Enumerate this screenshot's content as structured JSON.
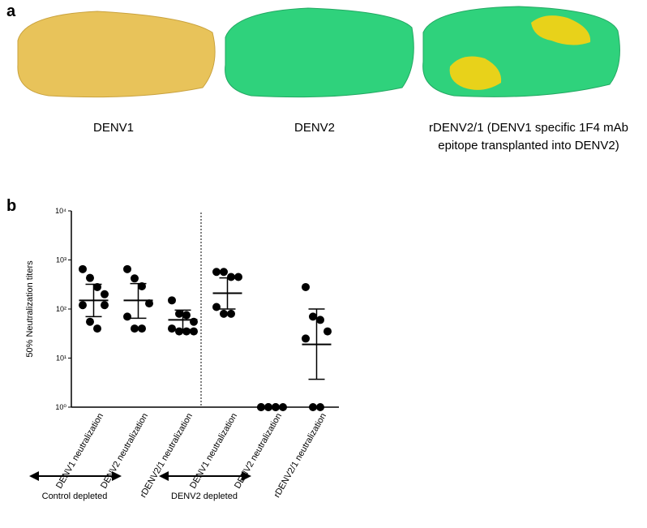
{
  "panel_a": {
    "label": "a",
    "captions": [
      "DENV1",
      "DENV2",
      "rDENV2/1 (DENV1 specific 1F4 mAb",
      "epitope transplanted into DENV2)"
    ]
  },
  "panel_b": {
    "label": "b",
    "groups": [
      "Control depleted",
      "DENV2 depleted"
    ]
  },
  "chart_data": {
    "type": "dotplot",
    "y_label": "50% Neutralization titers",
    "log_y": true,
    "categories": [
      "DENV1 neutralization",
      "DENV2 neutralization",
      "rDENV2/1 neutralization",
      "DENV1 neutralization",
      "DENV2 neutralization",
      "rDENV2/1 neutralization"
    ],
    "points": [
      [
        650,
        430,
        280,
        120,
        120,
        55,
        40,
        200
      ],
      [
        650,
        420,
        290,
        130,
        70,
        40,
        40
      ],
      [
        150,
        80,
        75,
        55,
        40,
        35,
        35,
        35
      ],
      [
        570,
        570,
        450,
        450,
        110,
        80,
        80
      ],
      [
        1,
        1,
        1,
        1,
        1,
        1,
        1
      ],
      [
        280,
        70,
        60,
        35,
        25,
        1,
        1
      ]
    ],
    "means": [
      150,
      150,
      60,
      210,
      1,
      19
    ],
    "err_low": [
      70,
      65,
      38,
      100,
      1,
      3.7
    ],
    "err_high": [
      320,
      330,
      95,
      430,
      1,
      100
    ],
    "color": "#000000",
    "ylim": [
      1,
      10000
    ],
    "yticks": [
      {
        "value": 1,
        "label": "10⁰"
      },
      {
        "value": 10,
        "label": "10¹"
      },
      {
        "value": 100,
        "label": "10²"
      },
      {
        "value": 1000,
        "label": "10³"
      },
      {
        "value": 10000,
        "label": "10⁴"
      }
    ]
  }
}
